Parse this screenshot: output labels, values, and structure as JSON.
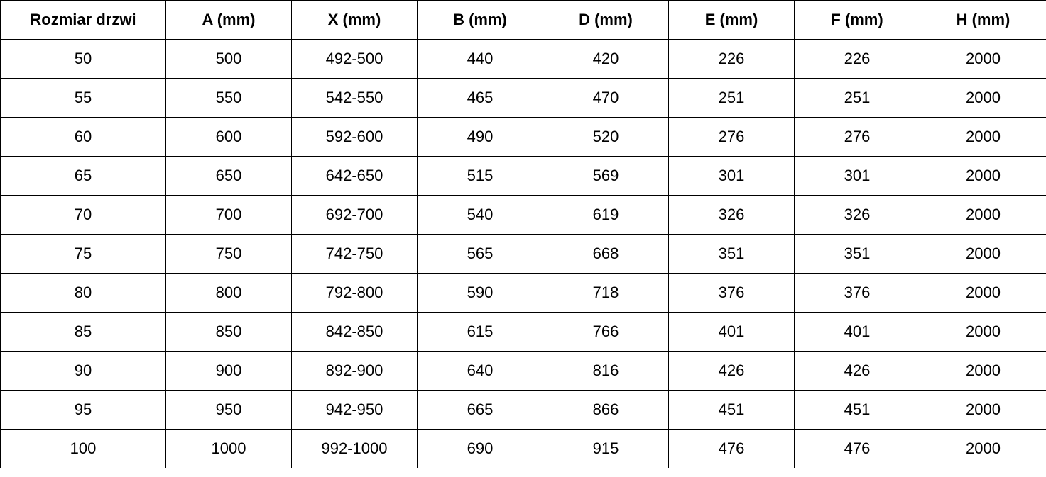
{
  "table": {
    "headers": [
      "Rozmiar drzwi",
      "A (mm)",
      "X (mm)",
      "B (mm)",
      "D (mm)",
      "E (mm)",
      "F (mm)",
      "H (mm)"
    ],
    "rows": [
      [
        "50",
        "500",
        "492-500",
        "440",
        "420",
        "226",
        "226",
        "2000"
      ],
      [
        "55",
        "550",
        "542-550",
        "465",
        "470",
        "251",
        "251",
        "2000"
      ],
      [
        "60",
        "600",
        "592-600",
        "490",
        "520",
        "276",
        "276",
        "2000"
      ],
      [
        "65",
        "650",
        "642-650",
        "515",
        "569",
        "301",
        "301",
        "2000"
      ],
      [
        "70",
        "700",
        "692-700",
        "540",
        "619",
        "326",
        "326",
        "2000"
      ],
      [
        "75",
        "750",
        "742-750",
        "565",
        "668",
        "351",
        "351",
        "2000"
      ],
      [
        "80",
        "800",
        "792-800",
        "590",
        "718",
        "376",
        "376",
        "2000"
      ],
      [
        "85",
        "850",
        "842-850",
        "615",
        "766",
        "401",
        "401",
        "2000"
      ],
      [
        "90",
        "900",
        "892-900",
        "640",
        "816",
        "426",
        "426",
        "2000"
      ],
      [
        "95",
        "950",
        "942-950",
        "665",
        "866",
        "451",
        "451",
        "2000"
      ],
      [
        "100",
        "1000",
        "992-1000",
        "690",
        "915",
        "476",
        "476",
        "2000"
      ]
    ]
  }
}
